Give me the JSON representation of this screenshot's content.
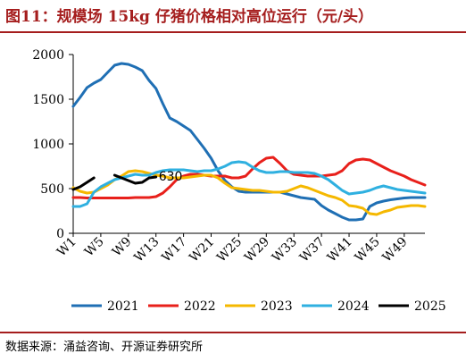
{
  "title": "图11：规模场 15kg 仔猪价格相对高位运行（元/头）",
  "source": "数据来源：涌益咨询、开源证券研究所",
  "chart_data": {
    "type": "line",
    "title": "规模场 15kg 仔猪价格相对高位运行（元/头）",
    "xlabel": "",
    "ylabel": "",
    "ylim": [
      0,
      2000
    ],
    "yticks": [
      0,
      500,
      1000,
      1500,
      2000
    ],
    "xlim": [
      1,
      52
    ],
    "xticks": [
      "W1",
      "W5",
      "W9",
      "W13",
      "W17",
      "W21",
      "W25",
      "W29",
      "W33",
      "W37",
      "W41",
      "W45",
      "W49"
    ],
    "grid": false,
    "legend_position": "bottom",
    "annotations": [
      {
        "text": "630",
        "x": 13,
        "y": 630
      }
    ],
    "series": [
      {
        "name": "2021",
        "color": "#1f6fb4",
        "x": [
          1,
          2,
          3,
          4,
          5,
          6,
          7,
          8,
          9,
          10,
          11,
          12,
          13,
          14,
          15,
          16,
          17,
          18,
          19,
          20,
          21,
          22,
          23,
          24,
          25,
          26,
          27,
          28,
          29,
          30,
          31,
          32,
          33,
          34,
          35,
          36,
          37,
          38,
          39,
          40,
          41,
          42,
          43,
          44,
          45,
          46,
          47,
          48,
          49,
          50,
          51,
          52
        ],
        "values": [
          1420,
          1520,
          1630,
          1680,
          1720,
          1800,
          1880,
          1900,
          1890,
          1860,
          1820,
          1710,
          1620,
          1450,
          1290,
          1250,
          1200,
          1150,
          1050,
          950,
          840,
          700,
          590,
          520,
          470,
          460,
          460,
          460,
          460,
          460,
          460,
          440,
          420,
          400,
          390,
          380,
          310,
          260,
          220,
          180,
          150,
          150,
          160,
          300,
          340,
          360,
          375,
          385,
          395,
          400,
          400,
          400
        ]
      },
      {
        "name": "2022",
        "color": "#e8201b",
        "x": [
          1,
          2,
          3,
          4,
          5,
          6,
          7,
          8,
          9,
          10,
          11,
          12,
          13,
          14,
          15,
          16,
          17,
          18,
          19,
          20,
          21,
          22,
          23,
          24,
          25,
          26,
          27,
          28,
          29,
          30,
          31,
          32,
          33,
          34,
          35,
          36,
          37,
          38,
          39,
          40,
          41,
          42,
          43,
          44,
          45,
          46,
          47,
          48,
          49,
          50,
          51,
          52
        ],
        "values": [
          400,
          400,
          395,
          395,
          395,
          395,
          395,
          395,
          395,
          400,
          400,
          400,
          410,
          450,
          520,
          600,
          640,
          660,
          660,
          650,
          640,
          640,
          640,
          620,
          620,
          640,
          720,
          790,
          840,
          850,
          780,
          700,
          660,
          650,
          640,
          640,
          640,
          650,
          660,
          700,
          780,
          820,
          830,
          820,
          780,
          740,
          700,
          670,
          640,
          600,
          570,
          540
        ]
      },
      {
        "name": "2023",
        "color": "#f5b800",
        "x": [
          1,
          2,
          3,
          4,
          5,
          6,
          7,
          8,
          9,
          10,
          11,
          12,
          13,
          14,
          15,
          16,
          17,
          18,
          19,
          20,
          21,
          22,
          23,
          24,
          25,
          26,
          27,
          28,
          29,
          30,
          31,
          32,
          33,
          34,
          35,
          36,
          37,
          38,
          39,
          40,
          41,
          42,
          43,
          44,
          45,
          46,
          47,
          48,
          49,
          50,
          51,
          52
        ],
        "values": [
          510,
          470,
          450,
          460,
          500,
          540,
          600,
          640,
          690,
          700,
          690,
          670,
          650,
          640,
          620,
          620,
          620,
          630,
          640,
          650,
          650,
          620,
          560,
          510,
          500,
          490,
          480,
          480,
          470,
          460,
          460,
          470,
          500,
          530,
          510,
          480,
          450,
          420,
          400,
          370,
          310,
          300,
          280,
          220,
          210,
          240,
          260,
          290,
          300,
          310,
          310,
          300
        ]
      },
      {
        "name": "2024",
        "color": "#2fb0e0",
        "x": [
          1,
          2,
          3,
          4,
          5,
          6,
          7,
          8,
          9,
          10,
          11,
          12,
          13,
          14,
          15,
          16,
          17,
          18,
          19,
          20,
          21,
          22,
          23,
          24,
          25,
          26,
          27,
          28,
          29,
          30,
          31,
          32,
          33,
          34,
          35,
          36,
          37,
          38,
          39,
          40,
          41,
          42,
          43,
          44,
          45,
          46,
          47,
          48,
          49,
          50,
          51,
          52
        ],
        "values": [
          300,
          300,
          330,
          460,
          520,
          560,
          600,
          620,
          640,
          660,
          650,
          650,
          680,
          700,
          710,
          710,
          710,
          700,
          690,
          700,
          700,
          720,
          750,
          790,
          800,
          790,
          740,
          700,
          680,
          680,
          690,
          690,
          680,
          680,
          680,
          670,
          640,
          600,
          540,
          480,
          440,
          450,
          460,
          480,
          510,
          530,
          510,
          490,
          480,
          470,
          460,
          450
        ]
      },
      {
        "name": "2025",
        "color": "#000000",
        "x": [
          1,
          2,
          3,
          4,
          5,
          6,
          7,
          8,
          9,
          10,
          11,
          12,
          13
        ],
        "values": [
          490,
          520,
          570,
          620,
          null,
          null,
          650,
          620,
          590,
          560,
          570,
          620,
          630
        ]
      }
    ]
  }
}
